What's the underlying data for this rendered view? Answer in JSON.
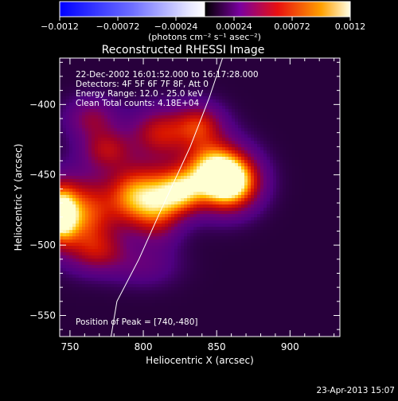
{
  "chart_data": {
    "type": "heatmap",
    "title": "Reconstructed RHESSI Image",
    "xlabel": "Heliocentric X (arcsec)",
    "ylabel": "Heliocentric Y (arcsec)",
    "xlim": [
      743,
      934
    ],
    "ylim": [
      -565,
      -367
    ],
    "x_ticks": [
      {
        "value": 750,
        "label": "750"
      },
      {
        "value": 800,
        "label": "800"
      },
      {
        "value": 850,
        "label": "850"
      },
      {
        "value": 900,
        "label": "900"
      }
    ],
    "y_ticks": [
      {
        "value": -400,
        "label": "−400"
      },
      {
        "value": -450,
        "label": "−450"
      },
      {
        "value": -500,
        "label": "−500"
      },
      {
        "value": -550,
        "label": "−550"
      }
    ],
    "colorbar": {
      "range": [
        -0.0012,
        0.0012
      ],
      "ticks": [
        {
          "value": -0.0012,
          "label": "−0.0012"
        },
        {
          "value": -0.00072,
          "label": "−0.00072"
        },
        {
          "value": -0.00024,
          "label": "−0.00024"
        },
        {
          "value": 0.00024,
          "label": "0.00024"
        },
        {
          "value": 0.00072,
          "label": "0.00072"
        },
        {
          "value": 0.0012,
          "label": "0.0012"
        }
      ],
      "unit_label": "(photons cm⁻² s⁻¹ asec⁻²)"
    },
    "info_lines": [
      "22-Dec-2002 16:01:52.000 to 16:17:28.000",
      "Detectors: 4F 5F 6F 7F 8F, Att 0",
      "Energy Range: 12.0 - 25.0 keV",
      "Clean    Total counts: 4.18E+04"
    ],
    "peak_label": "Position of Peak = [740,-480]",
    "sources": [
      {
        "x": 860,
        "y": -455,
        "value": 0.0012,
        "sx": 13,
        "sy": 13
      },
      {
        "x": 846,
        "y": -447,
        "value": 0.00095,
        "sx": 14,
        "sy": 16
      },
      {
        "x": 743,
        "y": -478,
        "value": 0.0012,
        "sx": 8,
        "sy": 14
      },
      {
        "x": 760,
        "y": -478,
        "value": 0.0008,
        "sx": 14,
        "sy": 18
      },
      {
        "x": 792,
        "y": -465,
        "value": 0.0008,
        "sx": 12,
        "sy": 15
      },
      {
        "x": 810,
        "y": -470,
        "value": 0.0008,
        "sx": 11,
        "sy": 17
      },
      {
        "x": 826,
        "y": -462,
        "value": 0.0008,
        "sx": 10,
        "sy": 11
      },
      {
        "x": 812,
        "y": -420,
        "value": 0.0006,
        "sx": 14,
        "sy": 12
      },
      {
        "x": 838,
        "y": -414,
        "value": 0.00055,
        "sx": 11,
        "sy": 10
      },
      {
        "x": 775,
        "y": -432,
        "value": 0.0005,
        "sx": 12,
        "sy": 10
      },
      {
        "x": 765,
        "y": -410,
        "value": 0.0004,
        "sx": 12,
        "sy": 10
      },
      {
        "x": 770,
        "y": -505,
        "value": 0.0004,
        "sx": 14,
        "sy": 10
      },
      {
        "x": 800,
        "y": -515,
        "value": 0.0002,
        "sx": 16,
        "sy": 10
      }
    ],
    "limb": [
      [
        854,
        -367
      ],
      [
        845,
        -395
      ],
      [
        832,
        -430
      ],
      [
        812,
        -475
      ],
      [
        797,
        -510
      ],
      [
        782,
        -540
      ],
      [
        778,
        -565
      ]
    ]
  },
  "footer": {
    "timestamp": "23-Apr-2013 15:07"
  }
}
